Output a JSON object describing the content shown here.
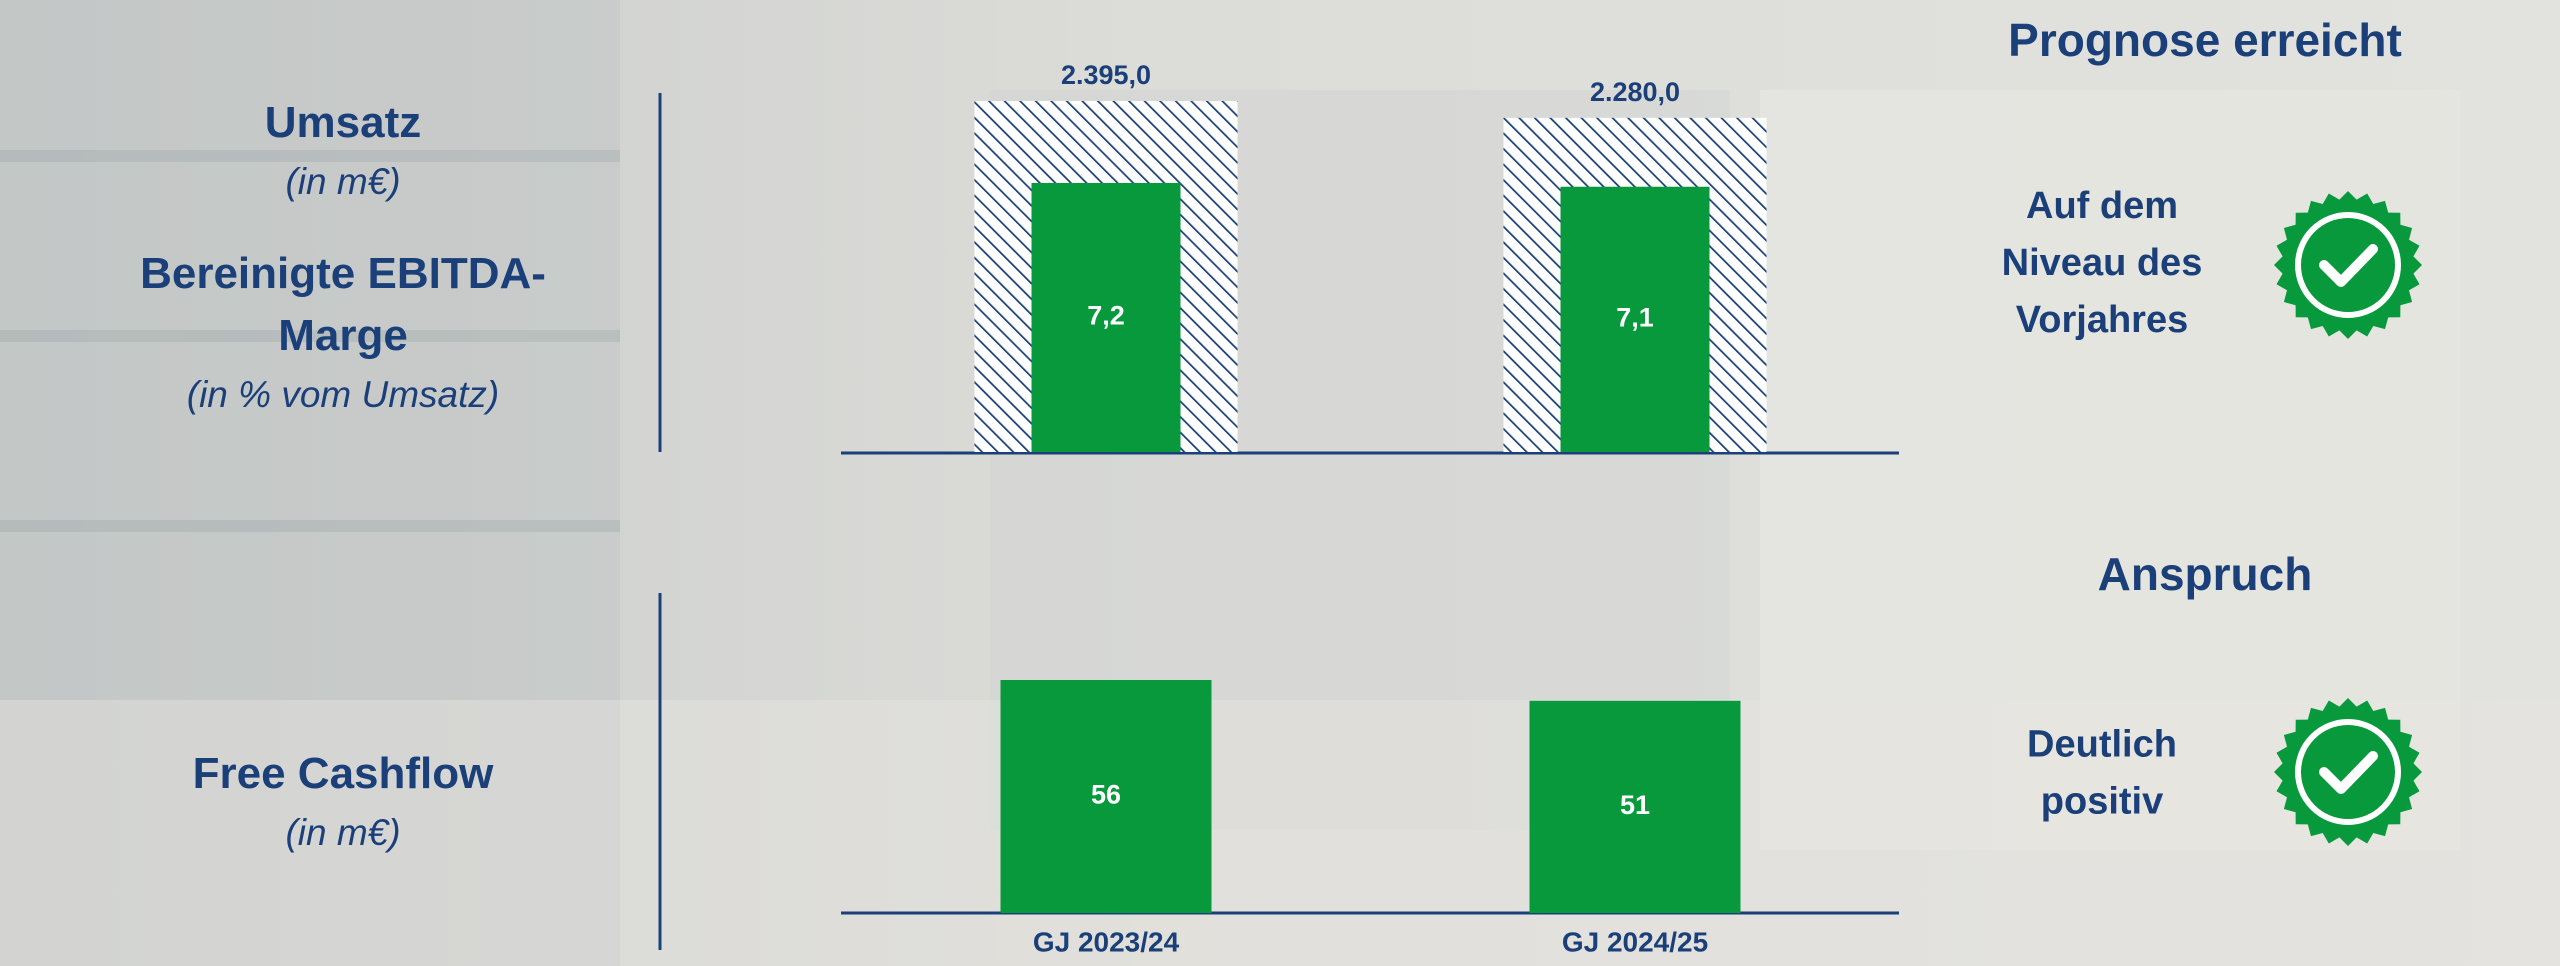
{
  "chart_data": {
    "type": "bar",
    "categories": [
      "GJ 2023/24",
      "GJ 2024/25"
    ],
    "series": [
      {
        "name": "Umsatz",
        "unit": "(in m€)",
        "color": "#1b3f78",
        "style": "hatched",
        "values": [
          2395.0,
          2280.0
        ],
        "value_labels": [
          "2.395,0",
          "2.280,0"
        ]
      },
      {
        "name": "Bereinigte EBITDA-Marge",
        "unit": "(in % vom Umsatz)",
        "color": "#07993b",
        "values": [
          7.2,
          7.1
        ],
        "value_labels": [
          "7,2",
          "7,1"
        ]
      },
      {
        "name": "Free Cashflow",
        "unit": "(in m€)",
        "color": "#07993b",
        "values": [
          56,
          51
        ]
      }
    ]
  },
  "panel": {
    "title": "Prognose erreicht",
    "items": [
      {
        "heading": null,
        "text": [
          "Auf dem",
          "Niveau des",
          "Vorjahres"
        ]
      },
      {
        "heading": "Anspruch",
        "text": [
          "Deutlich",
          "positiv"
        ]
      }
    ]
  }
}
